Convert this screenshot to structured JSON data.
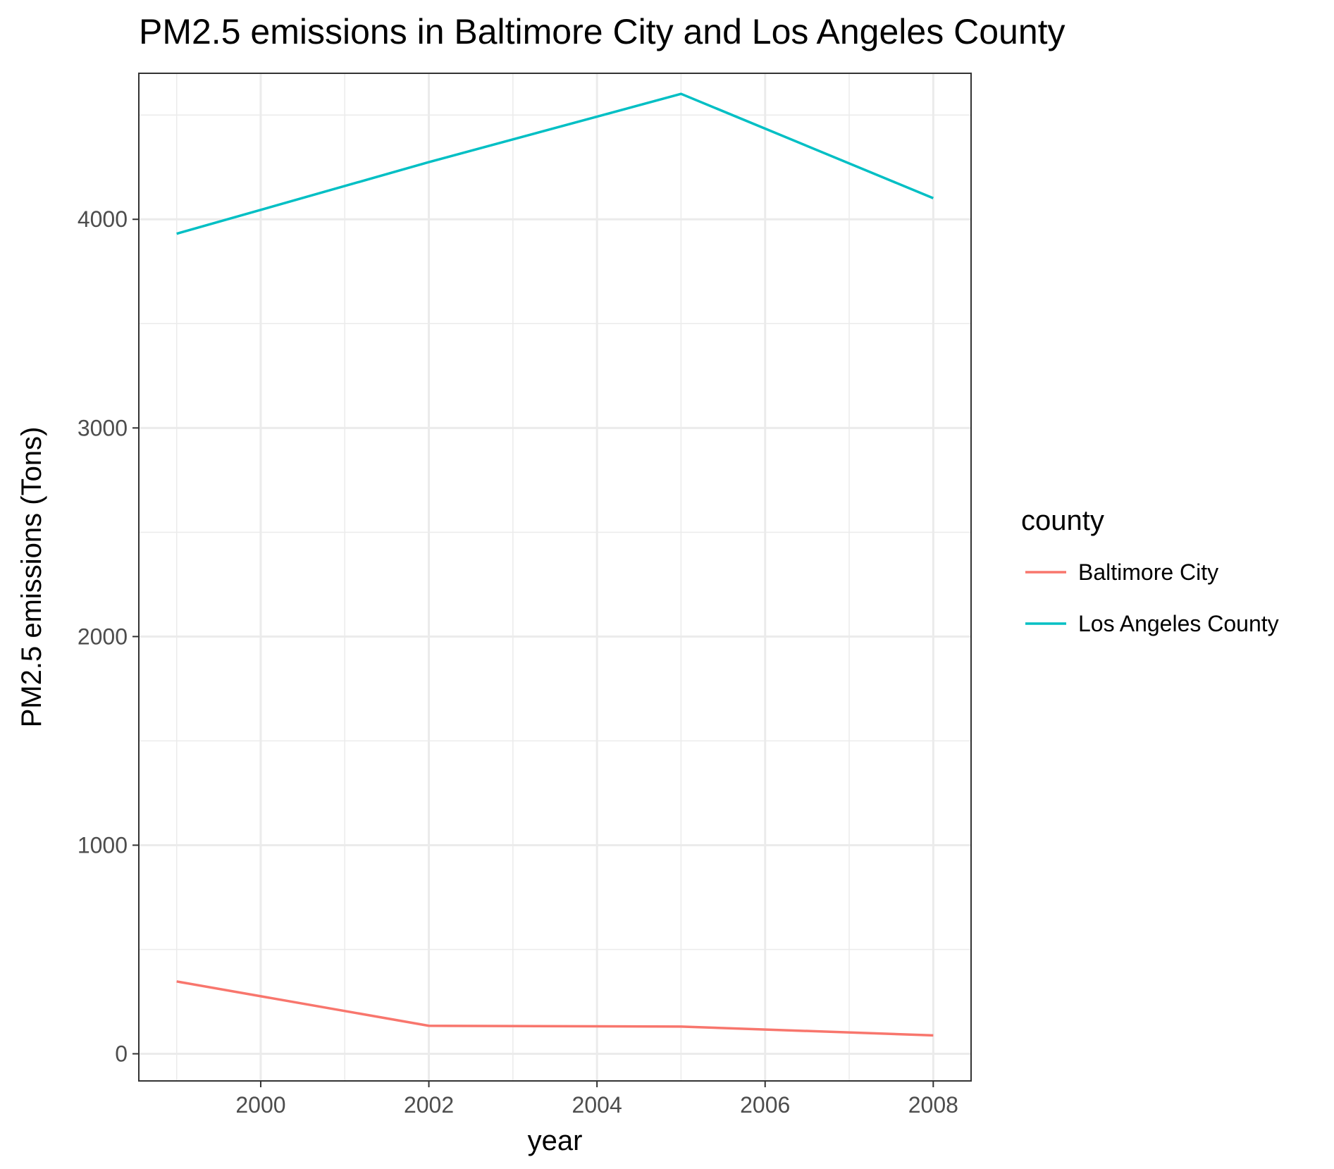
{
  "chart_data": {
    "type": "line",
    "title": "PM2.5 emissions in Baltimore City and Los Angeles County",
    "xlabel": "year",
    "ylabel": "PM2.5 emissions (Tons)",
    "x": [
      1999,
      2002,
      2005,
      2008
    ],
    "xlim": [
      1998.55,
      2008.45
    ],
    "ylim": [
      -130,
      4700
    ],
    "x_major_ticks": [
      2000,
      2002,
      2004,
      2006,
      2008
    ],
    "x_minor_ticks": [
      1999,
      2001,
      2003,
      2005,
      2007
    ],
    "y_major_ticks": [
      0,
      1000,
      2000,
      3000,
      4000
    ],
    "y_minor_ticks": [
      500,
      1500,
      2500,
      3500,
      4500
    ],
    "grid": true,
    "legend": {
      "title": "county",
      "placement": "right"
    },
    "series": [
      {
        "name": "Baltimore City",
        "color": "#F8766D",
        "values": [
          346.82,
          134.31,
          130.43,
          88.28
        ]
      },
      {
        "name": "Los Angeles County",
        "color": "#00BFC4",
        "values": [
          3931.12,
          4274.03,
          4601.41,
          4101.32
        ]
      }
    ]
  }
}
